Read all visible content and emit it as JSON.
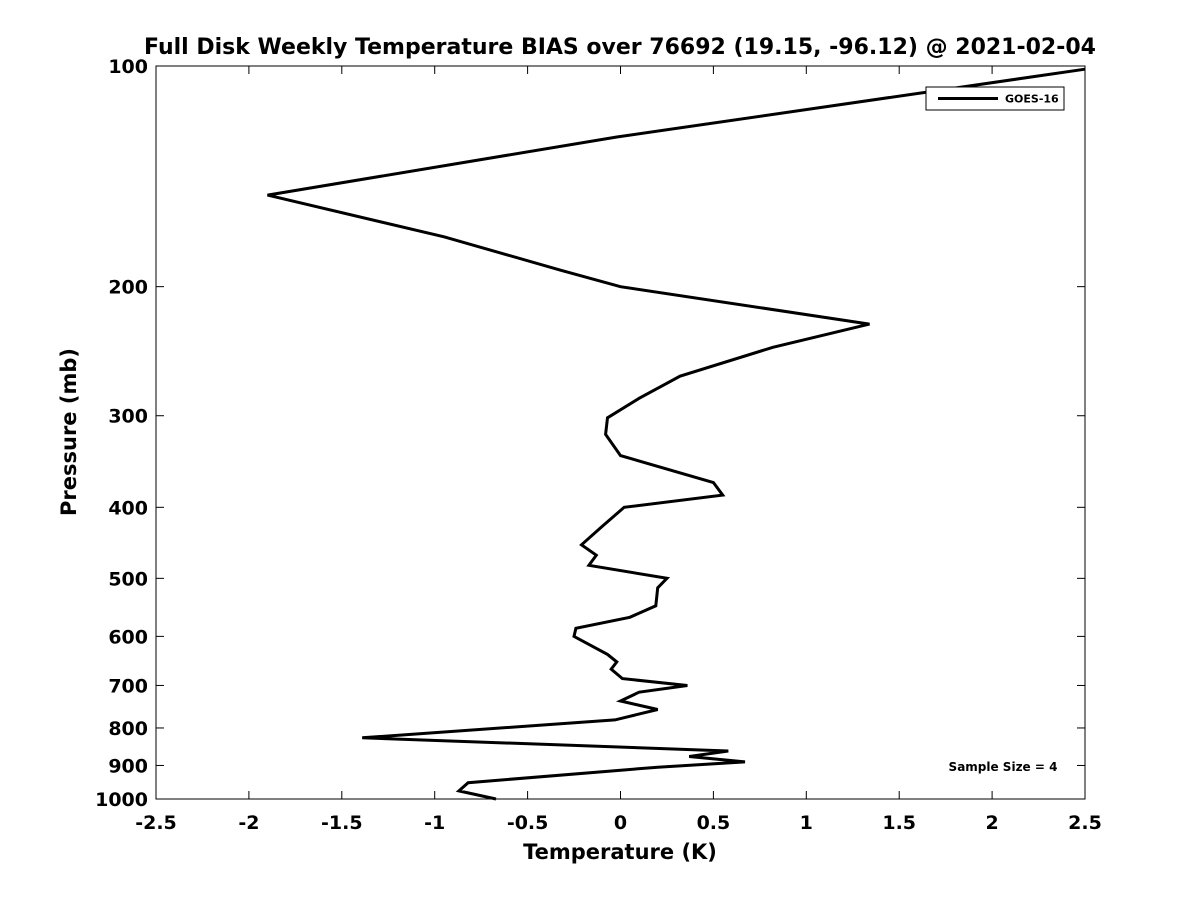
{
  "chart_data": {
    "type": "line",
    "title": "Full Disk Weekly Temperature BIAS over 76692 (19.15, -96.12) @ 2021-02-04",
    "xlabel": "Temperature (K)",
    "ylabel": "Pressure (mb)",
    "xlim": [
      -2.5,
      2.5
    ],
    "ylim": [
      1000,
      100
    ],
    "yscale": "log",
    "y_reversed": true,
    "grid": false,
    "x_ticks": [
      -2.5,
      -2,
      -1.5,
      -1,
      -0.5,
      0,
      0.5,
      1,
      1.5,
      2,
      2.5
    ],
    "x_tick_labels": [
      "-2.5",
      "-2",
      "-1.5",
      "-1",
      "-0.5",
      "0",
      "0.5",
      "1",
      "1.5",
      "2",
      "2.5"
    ],
    "y_ticks": [
      100,
      200,
      300,
      400,
      500,
      600,
      700,
      800,
      900,
      1000
    ],
    "y_tick_labels": [
      "100",
      "200",
      "300",
      "400",
      "500",
      "600",
      "700",
      "800",
      "900",
      "1000"
    ],
    "legend": {
      "position": "top-right",
      "entries": [
        "GOES-16"
      ]
    },
    "annotation": "Sample Size = 4",
    "series": [
      {
        "name": "GOES-16",
        "color": "#000000",
        "points": [
          {
            "t": 2.5,
            "p": 101
          },
          {
            "t": -0.02,
            "p": 125
          },
          {
            "t": -1.9,
            "p": 150
          },
          {
            "t": -0.95,
            "p": 171
          },
          {
            "t": -0.32,
            "p": 190
          },
          {
            "t": 0.0,
            "p": 200
          },
          {
            "t": 1.34,
            "p": 225
          },
          {
            "t": 0.82,
            "p": 242
          },
          {
            "t": 0.32,
            "p": 265
          },
          {
            "t": 0.1,
            "p": 284
          },
          {
            "t": -0.07,
            "p": 302
          },
          {
            "t": -0.08,
            "p": 318
          },
          {
            "t": 0.0,
            "p": 340
          },
          {
            "t": 0.5,
            "p": 370
          },
          {
            "t": 0.55,
            "p": 385
          },
          {
            "t": 0.02,
            "p": 400
          },
          {
            "t": -0.1,
            "p": 425
          },
          {
            "t": -0.21,
            "p": 450
          },
          {
            "t": -0.13,
            "p": 465
          },
          {
            "t": -0.17,
            "p": 480
          },
          {
            "t": 0.25,
            "p": 500
          },
          {
            "t": 0.2,
            "p": 515
          },
          {
            "t": 0.19,
            "p": 545
          },
          {
            "t": 0.05,
            "p": 565
          },
          {
            "t": -0.24,
            "p": 585
          },
          {
            "t": -0.25,
            "p": 600
          },
          {
            "t": -0.07,
            "p": 635
          },
          {
            "t": -0.02,
            "p": 650
          },
          {
            "t": -0.05,
            "p": 665
          },
          {
            "t": 0.01,
            "p": 685
          },
          {
            "t": 0.36,
            "p": 700
          },
          {
            "t": 0.1,
            "p": 715
          },
          {
            "t": 0.0,
            "p": 735
          },
          {
            "t": 0.2,
            "p": 755
          },
          {
            "t": -0.03,
            "p": 780
          },
          {
            "t": -1.39,
            "p": 825
          },
          {
            "t": 0.58,
            "p": 860
          },
          {
            "t": 0.37,
            "p": 875
          },
          {
            "t": 0.67,
            "p": 890
          },
          {
            "t": 0.2,
            "p": 905
          },
          {
            "t": -0.82,
            "p": 950
          },
          {
            "t": -0.87,
            "p": 975
          },
          {
            "t": -0.67,
            "p": 1000
          }
        ]
      }
    ]
  }
}
